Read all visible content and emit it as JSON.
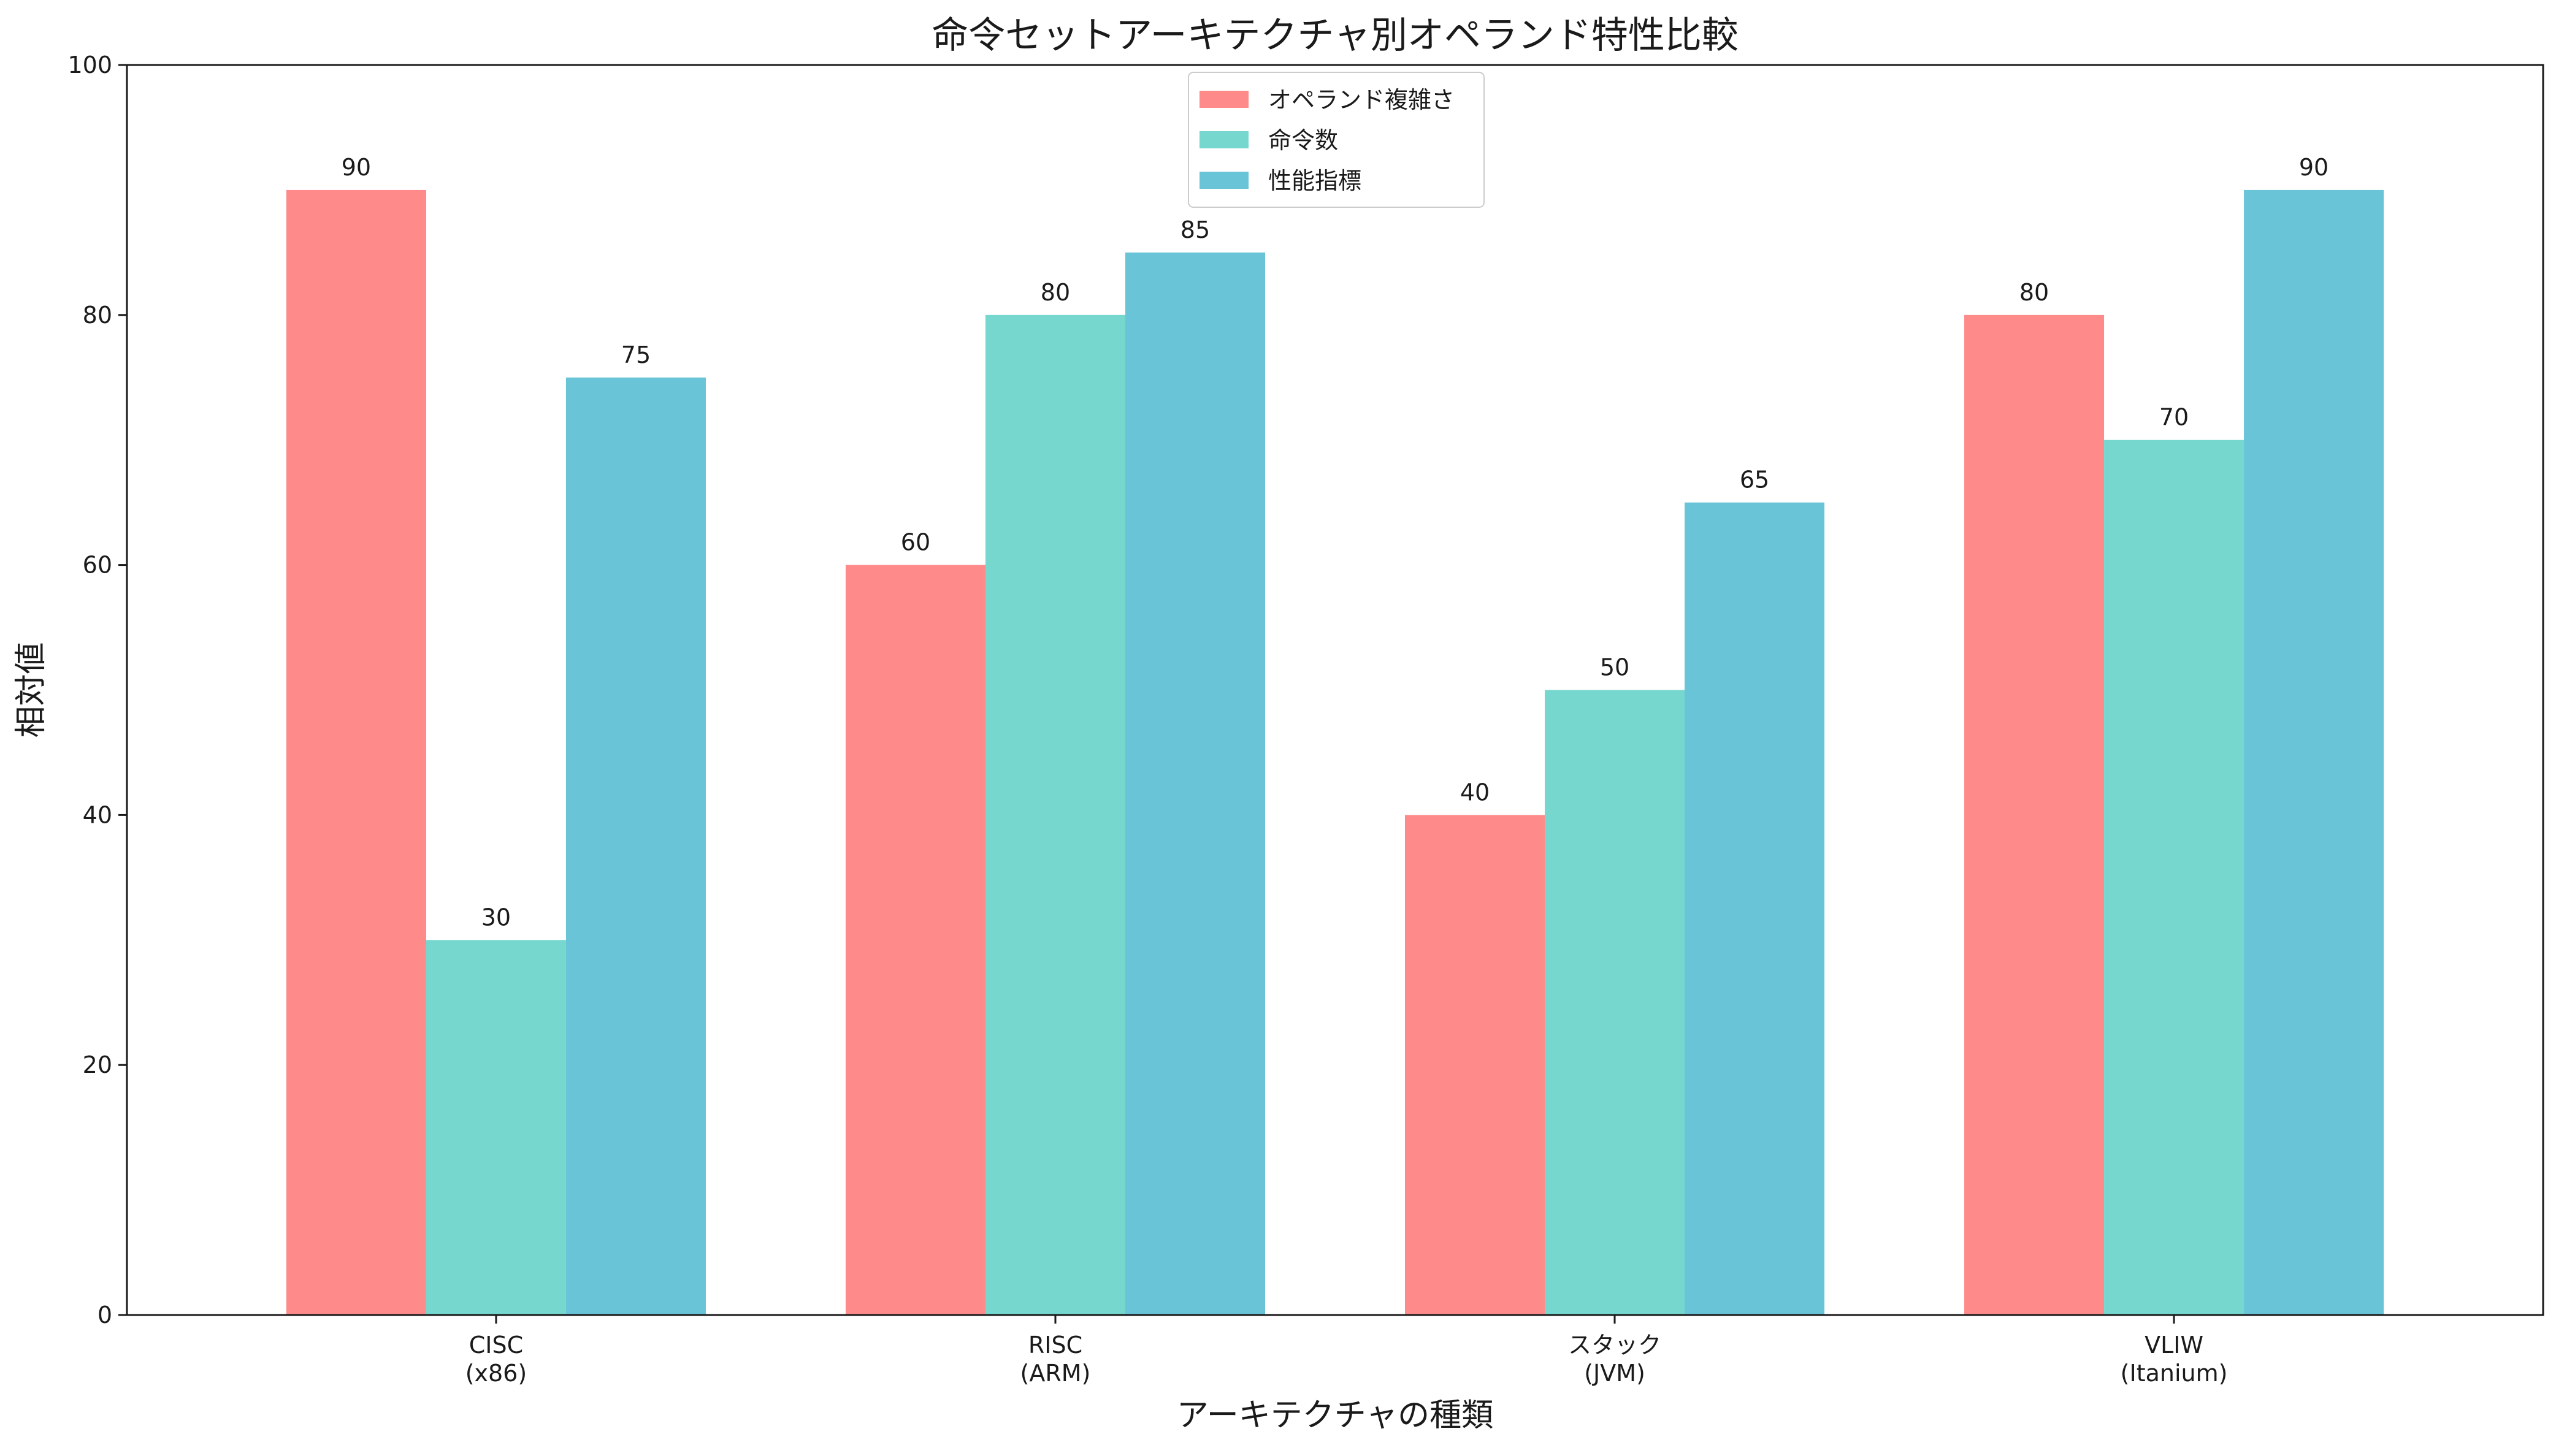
{
  "chart_data": {
    "type": "bar",
    "title": "命令セットアーキテクチャ別オペランド特性比較",
    "xlabel": "アーキテクチャの種類",
    "ylabel": "相対値",
    "categories": [
      [
        "CISC",
        "(x86)"
      ],
      [
        "RISC",
        "(ARM)"
      ],
      [
        "スタック",
        "(JVM)"
      ],
      [
        "VLIW",
        "(Itanium)"
      ]
    ],
    "series": [
      {
        "name": "オペランド複雑さ",
        "color": "#ff8a8a",
        "values": [
          90,
          60,
          40,
          80
        ]
      },
      {
        "name": "命令数",
        "color": "#76d7cf",
        "values": [
          30,
          80,
          50,
          70
        ]
      },
      {
        "name": "性能指標",
        "color": "#69c4d8",
        "values": [
          75,
          85,
          65,
          90
        ]
      }
    ],
    "ylim": [
      0,
      100
    ],
    "yticks": [
      0,
      20,
      40,
      60,
      80,
      100
    ],
    "grid": false,
    "legend": "top-center",
    "show_value_labels": true
  }
}
